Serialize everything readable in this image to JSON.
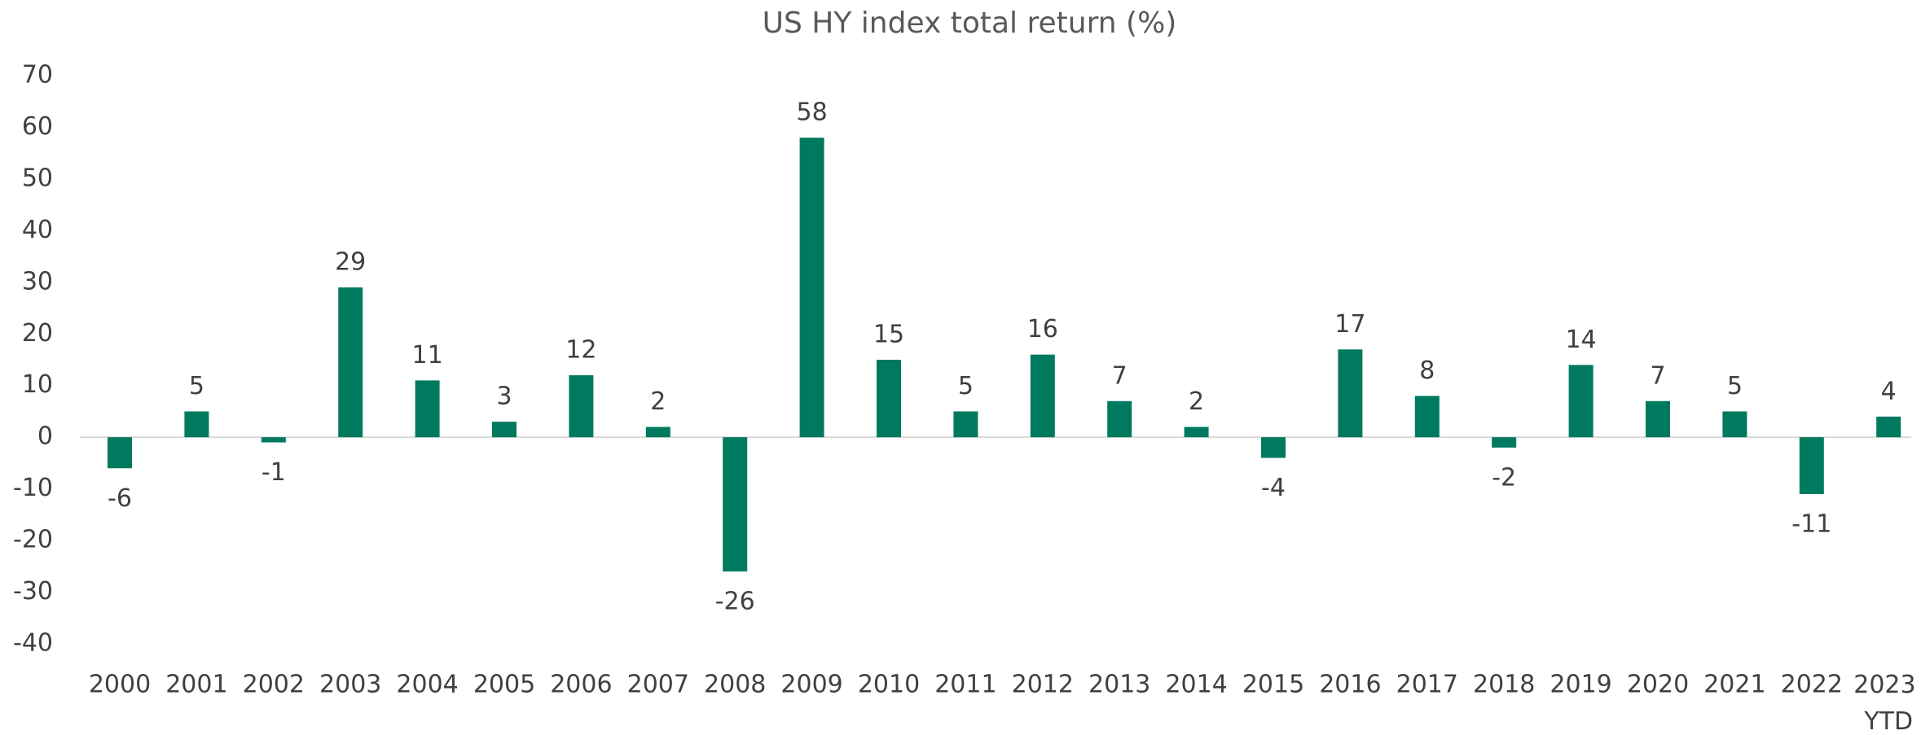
{
  "chart_data": {
    "type": "bar",
    "title": "US HY index total return (%)",
    "categories": [
      "2000",
      "2001",
      "2002",
      "2003",
      "2004",
      "2005",
      "2006",
      "2007",
      "2008",
      "2009",
      "2010",
      "2011",
      "2012",
      "2013",
      "2014",
      "2015",
      "2016",
      "2017",
      "2018",
      "2019",
      "2020",
      "2021",
      "2022",
      "2023 YTD"
    ],
    "values": [
      -6,
      5,
      -1,
      29,
      11,
      3,
      12,
      2,
      -26,
      58,
      15,
      5,
      16,
      7,
      2,
      -4,
      17,
      8,
      -2,
      14,
      7,
      5,
      -11,
      4
    ],
    "color": "#007a5e",
    "ylim": [
      -40,
      70
    ],
    "yticks": [
      -40,
      -30,
      -20,
      -10,
      0,
      10,
      20,
      30,
      40,
      50,
      60,
      70
    ],
    "grid": false
  }
}
